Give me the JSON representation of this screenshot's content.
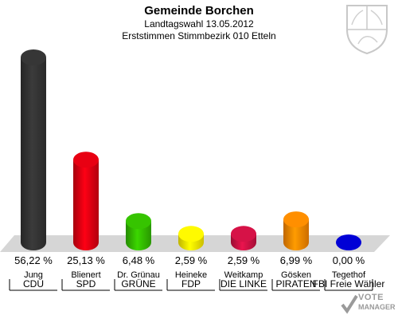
{
  "title": "Gemeinde Borchen",
  "subtitle": "Landtagswahl 13.05.2012",
  "subtitle2": "Erststimmen Stimmbezirk 010 Etteln",
  "logo": {
    "line1": "VOTE",
    "line2": "MANAGER"
  },
  "chart_data": {
    "type": "bar",
    "title": "Gemeinde Borchen",
    "ylim": [
      0,
      60
    ],
    "grid": false,
    "categories": [
      "Jung",
      "Blienert",
      "Dr. Grünau",
      "Heineke",
      "Weitkamp",
      "Gösken",
      "Tegethof"
    ],
    "parties": [
      "CDU",
      "SPD",
      "GRÜNE",
      "FDP",
      "DIE LINKE",
      "PIRATEN",
      "FBI Freie Wähler"
    ],
    "values": [
      56.22,
      25.13,
      6.48,
      2.59,
      2.59,
      6.99,
      0.0
    ],
    "value_labels": [
      "56,22 %",
      "25,13 %",
      "6,48 %",
      "2,59 %",
      "2,59 %",
      "6,99 %",
      "0,00 %"
    ],
    "colors": [
      "#333333",
      "#dd0011",
      "#33bb00",
      "#ffee00",
      "#cc1144",
      "#ff8800",
      "#0000cc"
    ]
  }
}
